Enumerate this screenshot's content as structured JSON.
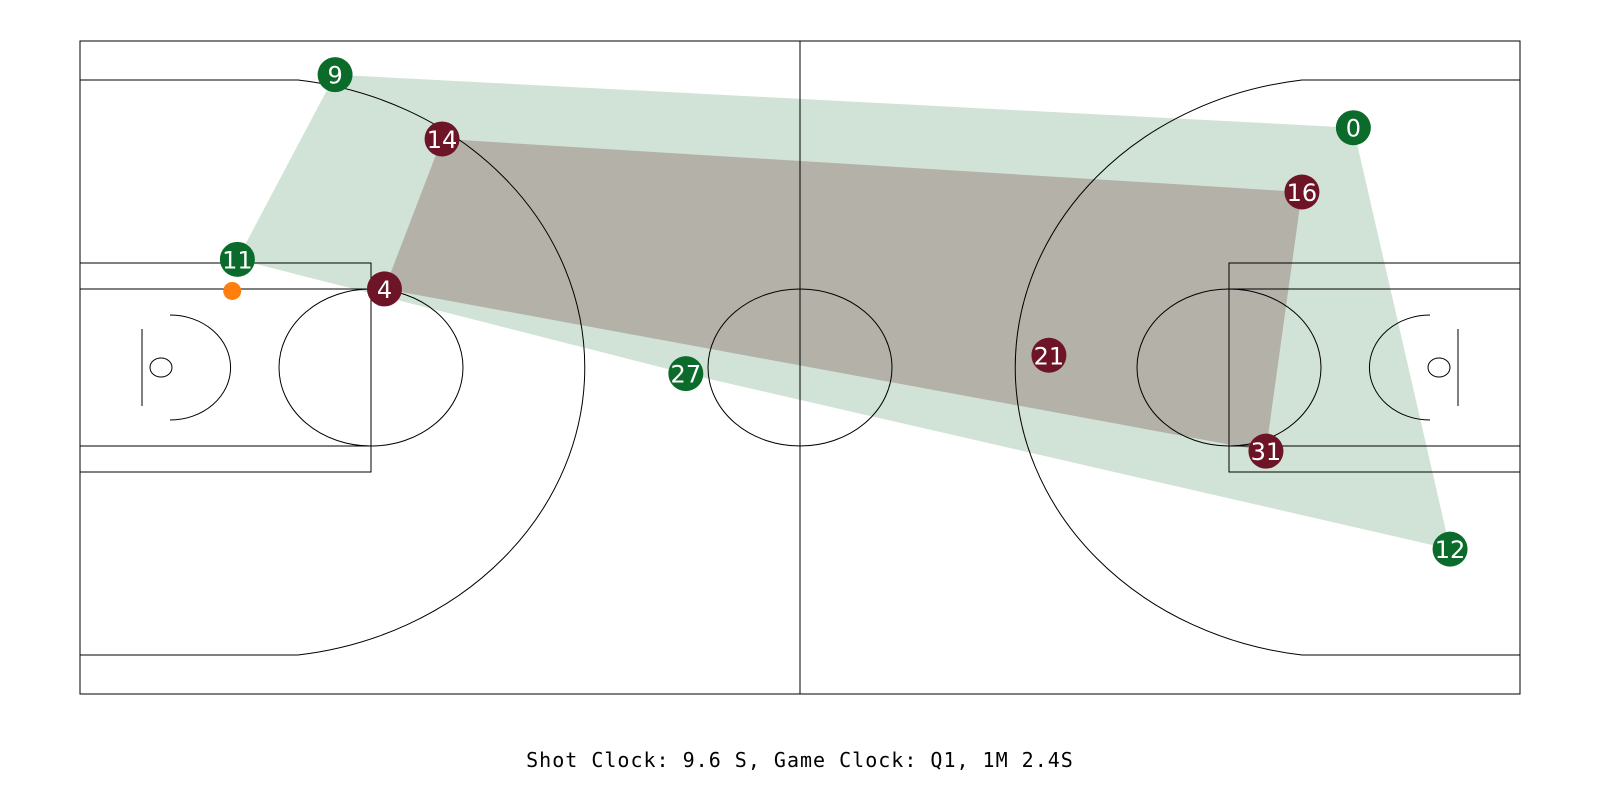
{
  "colors": {
    "home": "#0b6b2a",
    "away": "#6e1427",
    "home_hull": "#a3c8ae",
    "away_hull": "#aaa09a",
    "ball": "#ff7f0e"
  },
  "home_players": [
    {
      "number": "9",
      "x": 24.8,
      "y": 3.3
    },
    {
      "number": "11",
      "x": 15.3,
      "y": 21.4
    },
    {
      "number": "27",
      "x": 58.9,
      "y": 32.6
    },
    {
      "number": "0",
      "x": 123.8,
      "y": 8.5
    },
    {
      "number": "12",
      "x": 133.2,
      "y": 49.8
    }
  ],
  "away_players": [
    {
      "number": "14",
      "x": 35.2,
      "y": 9.6
    },
    {
      "number": "4",
      "x": 29.6,
      "y": 24.3
    },
    {
      "number": "21",
      "x": 94.2,
      "y": 30.8
    },
    {
      "number": "16",
      "x": 118.8,
      "y": 14.8
    },
    {
      "number": "31",
      "x": 115.3,
      "y": 40.2
    }
  ],
  "ball": {
    "x": 14.8,
    "y": 24.5
  },
  "caption": "Shot Clock: 9.6 S, Game Clock: Q1, 1M 2.4S"
}
